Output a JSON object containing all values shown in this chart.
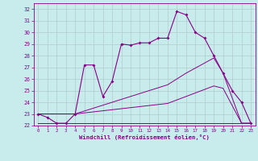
{
  "background_color": "#c8ecec",
  "line_color": "#880088",
  "grid_color": "#b0cccc",
  "xlabel": "Windchill (Refroidissement éolien,°C)",
  "ylim": [
    22,
    32.5
  ],
  "xlim": [
    -0.5,
    23.5
  ],
  "yticks": [
    22,
    23,
    24,
    25,
    26,
    27,
    28,
    29,
    30,
    31,
    32
  ],
  "xticks": [
    0,
    1,
    2,
    3,
    4,
    5,
    6,
    7,
    8,
    9,
    10,
    11,
    12,
    13,
    14,
    15,
    16,
    17,
    18,
    19,
    20,
    21,
    22,
    23
  ],
  "series": [
    {
      "x": [
        0,
        1,
        2,
        3,
        4,
        5,
        6,
        7,
        8,
        9,
        10,
        11,
        12,
        13,
        14,
        15,
        16,
        17,
        18,
        19,
        20,
        21,
        22,
        23
      ],
      "y": [
        23.0,
        22.7,
        22.2,
        22.2,
        23.0,
        27.2,
        27.2,
        24.5,
        25.8,
        29.0,
        28.9,
        29.1,
        29.1,
        29.5,
        29.5,
        31.8,
        31.5,
        30.0,
        29.5,
        28.0,
        26.5,
        25.0,
        24.0,
        22.2
      ]
    },
    {
      "x": [
        0,
        4,
        14,
        15,
        16,
        19,
        20,
        22,
        23
      ],
      "y": [
        23.0,
        23.0,
        25.5,
        26.0,
        26.5,
        27.8,
        26.5,
        22.2,
        22.2
      ]
    },
    {
      "x": [
        0,
        4,
        14,
        15,
        16,
        19,
        20,
        22,
        23
      ],
      "y": [
        23.0,
        23.0,
        23.9,
        24.2,
        24.5,
        25.4,
        25.2,
        22.2,
        22.2
      ]
    },
    {
      "x": [
        0,
        19,
        20,
        23
      ],
      "y": [
        22.2,
        22.2,
        22.2,
        22.2
      ]
    }
  ]
}
